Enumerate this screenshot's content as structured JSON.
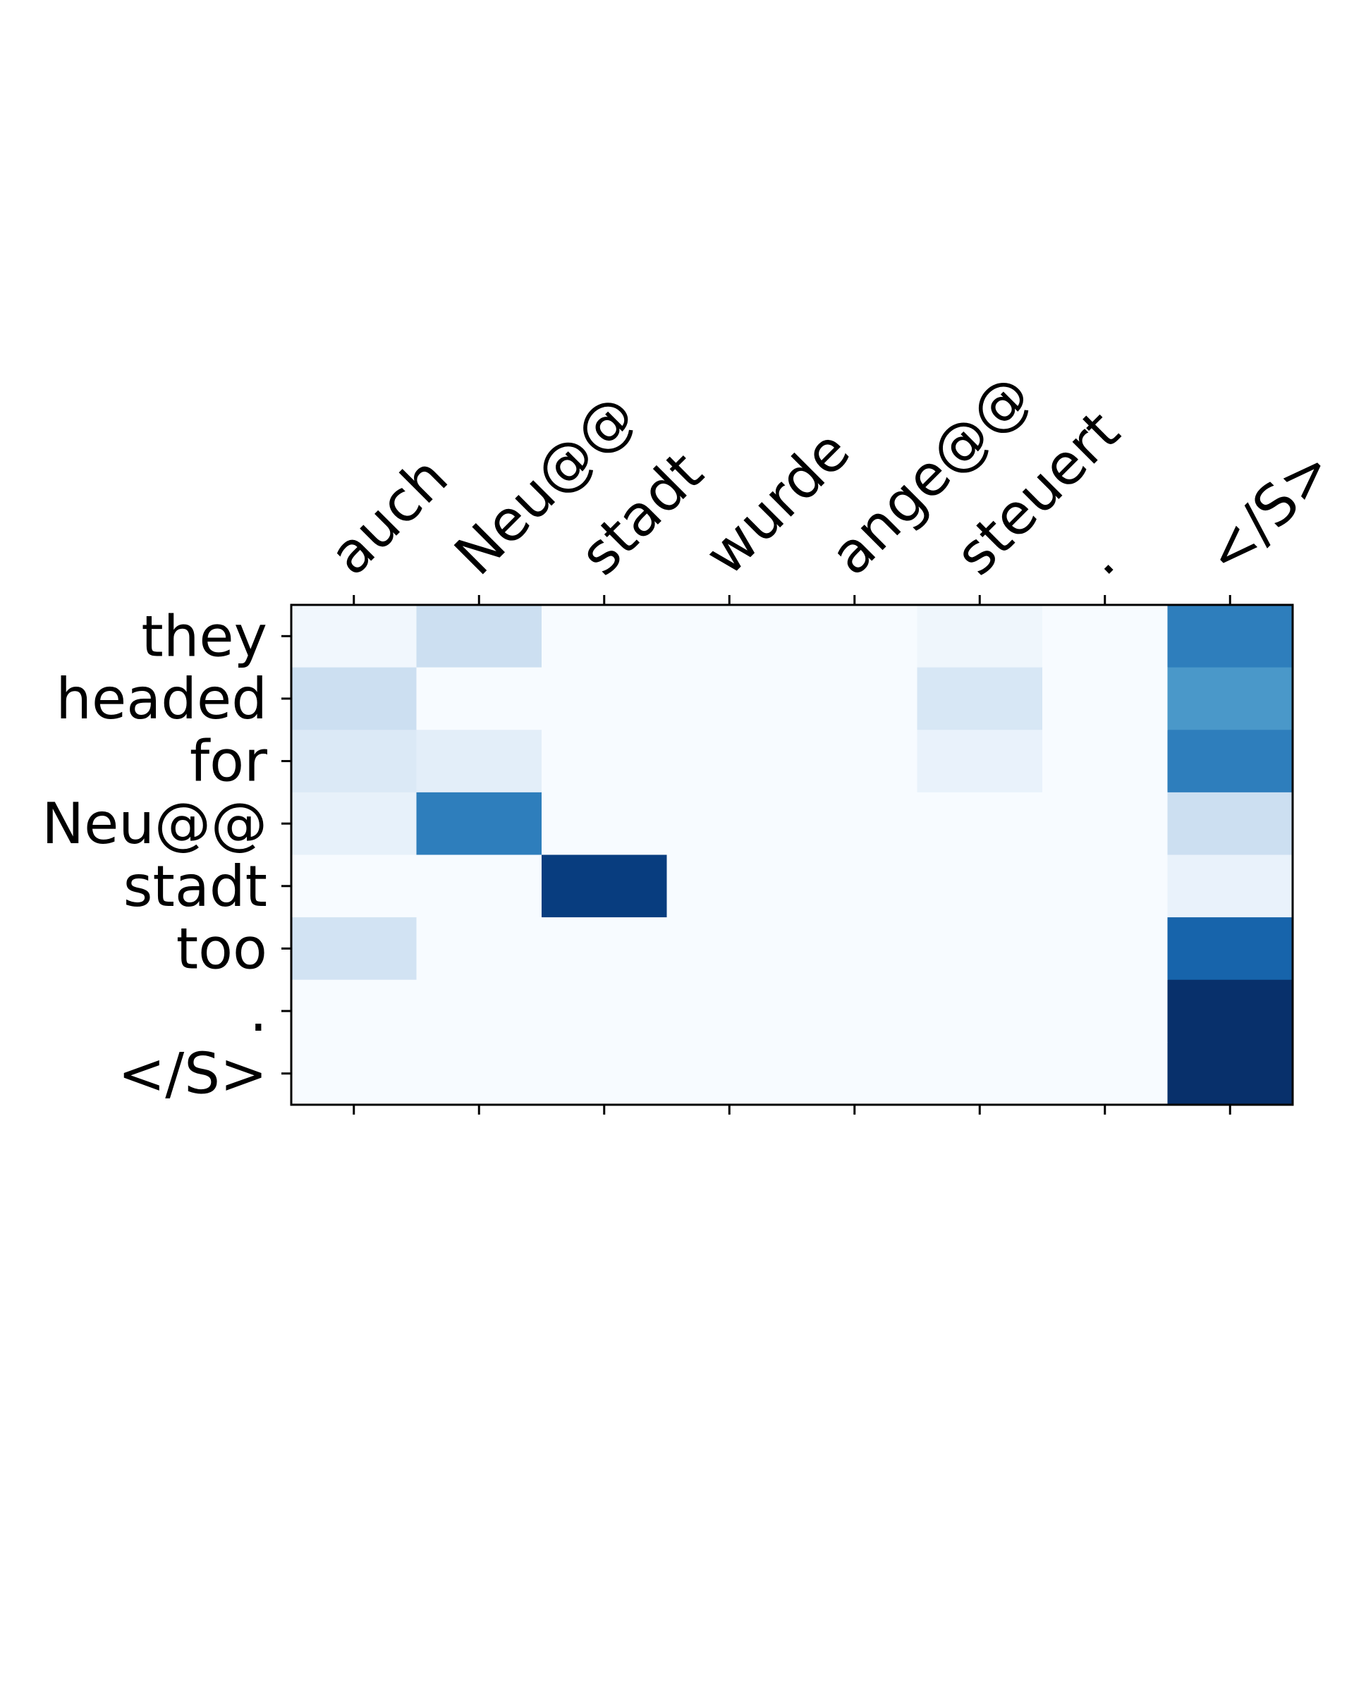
{
  "chart_data": {
    "type": "heatmap",
    "x_labels": [
      "auch",
      "Neu@@",
      "stadt",
      "wurde",
      "ange@@",
      "steuert",
      ".",
      "</S>"
    ],
    "y_labels": [
      "they",
      "headed",
      "for",
      "Neu@@",
      "stadt",
      "too",
      ".",
      "</S>"
    ],
    "values": [
      [
        0.03,
        0.22,
        0.0,
        0.0,
        0.0,
        0.04,
        0.0,
        0.7
      ],
      [
        0.22,
        0.0,
        0.0,
        0.0,
        0.0,
        0.16,
        0.0,
        0.6
      ],
      [
        0.14,
        0.1,
        0.0,
        0.0,
        0.0,
        0.07,
        0.0,
        0.7
      ],
      [
        0.08,
        0.7,
        0.0,
        0.0,
        0.0,
        0.0,
        0.0,
        0.22
      ],
      [
        0.0,
        0.0,
        0.95,
        0.0,
        0.0,
        0.0,
        0.0,
        0.07
      ],
      [
        0.19,
        0.0,
        0.0,
        0.0,
        0.0,
        0.0,
        0.0,
        0.8
      ],
      [
        0.0,
        0.0,
        0.0,
        0.0,
        0.0,
        0.0,
        0.0,
        1.0
      ],
      [
        0.0,
        0.0,
        0.0,
        0.0,
        0.0,
        0.0,
        0.0,
        1.0
      ]
    ],
    "colormap": "Blues",
    "value_range": [
      0,
      1
    ],
    "x_label_position": "top",
    "grid": false,
    "legend": "none"
  }
}
